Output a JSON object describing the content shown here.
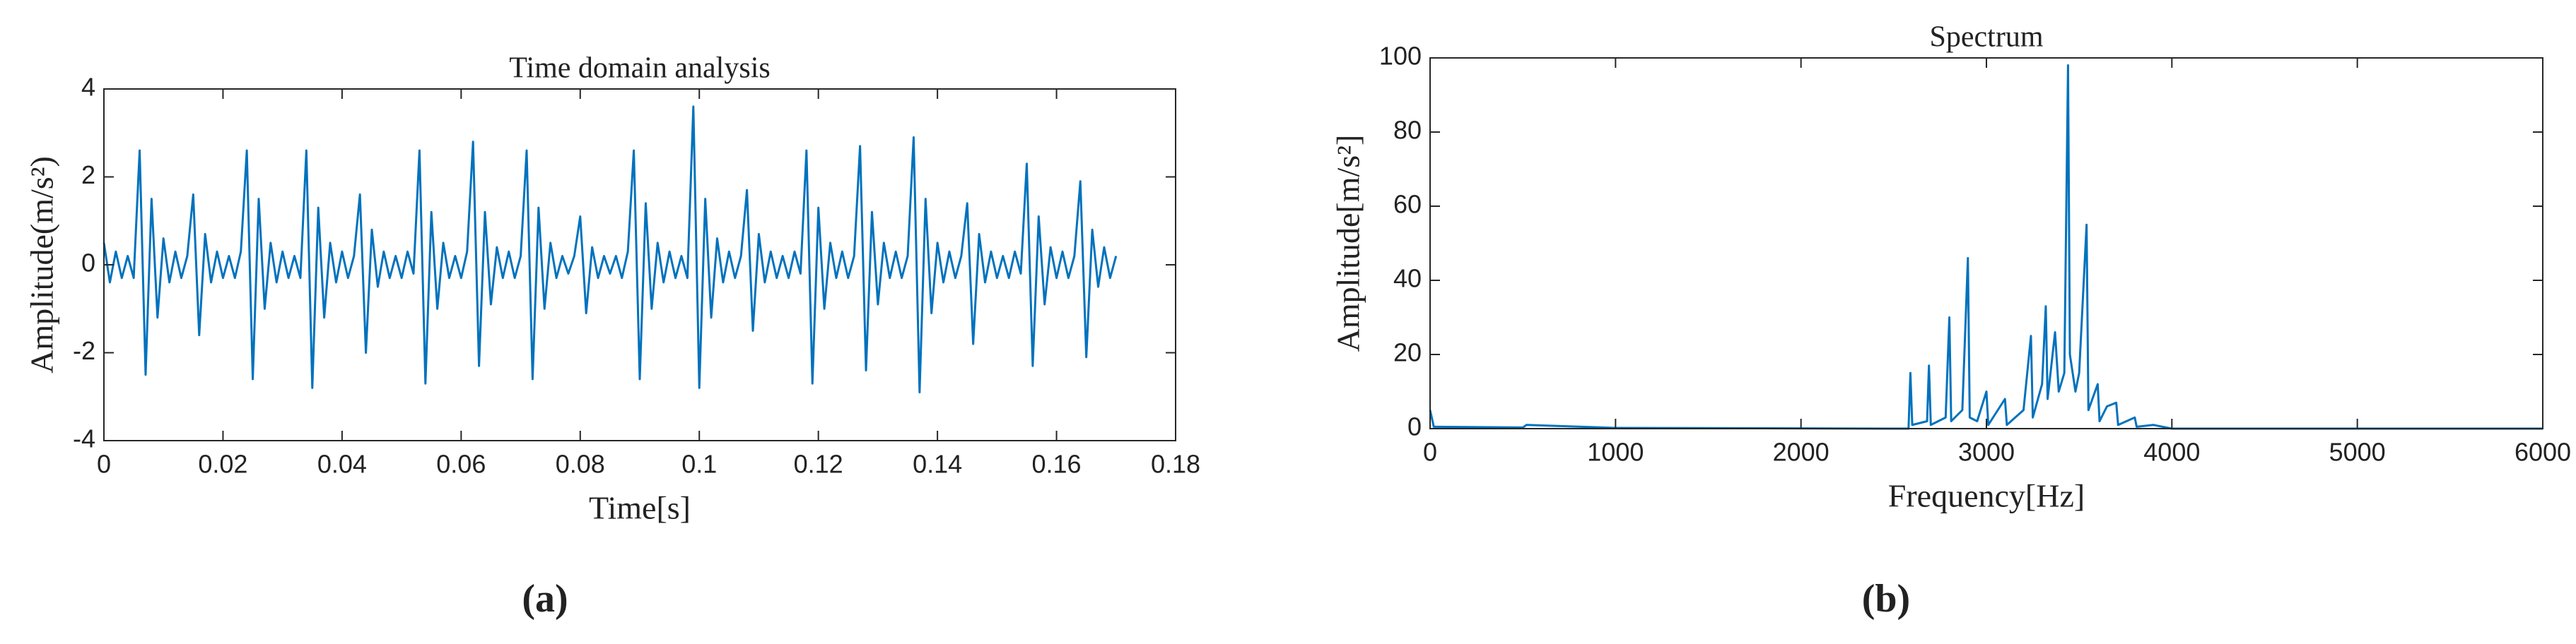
{
  "chart_data": [
    {
      "type": "line",
      "title": "Time domain analysis",
      "x_label": "Time[s]",
      "y_label": "Amplitude(m/s²)",
      "subplot_label": "(a)",
      "color": "#0072BD",
      "xlim": [
        0,
        0.18
      ],
      "xticks": [
        0,
        0.02,
        0.04,
        0.06,
        0.08,
        0.1,
        0.12,
        0.14,
        0.16,
        0.18
      ],
      "ylim": [
        -4,
        4
      ],
      "yticks": [
        -4,
        -2,
        0,
        2,
        4
      ],
      "x": [
        0,
        0.001,
        0.002,
        0.003,
        0.004,
        0.005,
        0.006,
        0.007,
        0.008,
        0.009,
        0.01,
        0.011,
        0.012,
        0.013,
        0.014,
        0.015,
        0.016,
        0.017,
        0.018,
        0.019,
        0.02,
        0.021,
        0.022,
        0.023,
        0.024,
        0.025,
        0.026,
        0.027,
        0.028,
        0.029,
        0.03,
        0.031,
        0.032,
        0.033,
        0.034,
        0.035,
        0.036,
        0.037,
        0.038,
        0.039,
        0.04,
        0.041,
        0.042,
        0.043,
        0.044,
        0.045,
        0.046,
        0.047,
        0.048,
        0.049,
        0.05,
        0.051,
        0.052,
        0.053,
        0.054,
        0.055,
        0.056,
        0.057,
        0.058,
        0.059,
        0.06,
        0.061,
        0.062,
        0.063,
        0.064,
        0.065,
        0.066,
        0.067,
        0.068,
        0.069,
        0.07,
        0.071,
        0.072,
        0.073,
        0.074,
        0.075,
        0.076,
        0.077,
        0.078,
        0.079,
        0.08,
        0.081,
        0.082,
        0.083,
        0.084,
        0.085,
        0.086,
        0.087,
        0.088,
        0.089,
        0.09,
        0.091,
        0.092,
        0.093,
        0.094,
        0.095,
        0.096,
        0.097,
        0.098,
        0.099,
        0.1,
        0.101,
        0.102,
        0.103,
        0.104,
        0.105,
        0.106,
        0.107,
        0.108,
        0.109,
        0.11,
        0.111,
        0.112,
        0.113,
        0.114,
        0.115,
        0.116,
        0.117,
        0.118,
        0.119,
        0.12,
        0.121,
        0.122,
        0.123,
        0.124,
        0.125,
        0.126,
        0.127,
        0.128,
        0.129,
        0.13,
        0.131,
        0.132,
        0.133,
        0.134,
        0.135,
        0.136,
        0.137,
        0.138,
        0.139,
        0.14,
        0.141,
        0.142,
        0.143,
        0.144,
        0.145,
        0.146,
        0.147,
        0.148,
        0.149,
        0.15,
        0.151,
        0.152,
        0.153,
        0.154,
        0.155,
        0.156,
        0.157,
        0.158,
        0.159,
        0.16,
        0.161,
        0.162,
        0.163,
        0.164,
        0.165,
        0.166,
        0.167,
        0.168,
        0.169,
        0.17
      ],
      "values": [
        0.5,
        -0.4,
        0.3,
        -0.3,
        0.2,
        -0.3,
        2.6,
        -2.5,
        1.5,
        -1.2,
        0.6,
        -0.4,
        0.3,
        -0.3,
        0.2,
        1.6,
        -1.6,
        0.7,
        -0.4,
        0.3,
        -0.3,
        0.2,
        -0.3,
        0.3,
        2.6,
        -2.6,
        1.5,
        -1.0,
        0.5,
        -0.4,
        0.3,
        -0.3,
        0.2,
        -0.3,
        2.6,
        -2.8,
        1.3,
        -1.2,
        0.5,
        -0.4,
        0.3,
        -0.3,
        0.2,
        1.6,
        -2.0,
        0.8,
        -0.5,
        0.3,
        -0.3,
        0.2,
        -0.3,
        0.3,
        -0.2,
        2.6,
        -2.7,
        1.2,
        -1.0,
        0.5,
        -0.3,
        0.2,
        -0.3,
        0.3,
        2.8,
        -2.3,
        1.2,
        -0.9,
        0.4,
        -0.3,
        0.3,
        -0.3,
        0.2,
        2.6,
        -2.6,
        1.3,
        -1.0,
        0.5,
        -0.3,
        0.2,
        -0.2,
        0.2,
        1.1,
        -1.1,
        0.4,
        -0.3,
        0.2,
        -0.2,
        0.2,
        -0.3,
        0.3,
        2.6,
        -2.6,
        1.4,
        -1.0,
        0.5,
        -0.4,
        0.3,
        -0.3,
        0.2,
        -0.3,
        3.6,
        -2.8,
        1.5,
        -1.2,
        0.6,
        -0.4,
        0.3,
        -0.3,
        0.2,
        1.7,
        -1.5,
        0.7,
        -0.4,
        0.3,
        -0.3,
        0.2,
        -0.3,
        0.3,
        -0.2,
        2.6,
        -2.7,
        1.3,
        -1.0,
        0.5,
        -0.3,
        0.3,
        -0.3,
        0.2,
        2.7,
        -2.4,
        1.2,
        -0.9,
        0.5,
        -0.3,
        0.3,
        -0.3,
        0.2,
        2.9,
        -2.9,
        1.5,
        -1.1,
        0.5,
        -0.4,
        0.3,
        -0.3,
        0.2,
        1.4,
        -1.8,
        0.7,
        -0.4,
        0.3,
        -0.3,
        0.2,
        -0.3,
        0.3,
        -0.2,
        2.3,
        -2.3,
        1.1,
        -0.9,
        0.4,
        -0.3,
        0.3,
        -0.3,
        0.2,
        1.9,
        -2.1,
        0.8,
        -0.5,
        0.4,
        -0.3,
        0.2
      ]
    },
    {
      "type": "line",
      "title": "Spectrum",
      "x_label": "Frequency[Hz]",
      "y_label": "Amplitude[m/s²]",
      "subplot_label": "(b)",
      "color": "#0072BD",
      "xlim": [
        0,
        6000
      ],
      "xticks": [
        0,
        1000,
        2000,
        3000,
        4000,
        5000,
        6000
      ],
      "ylim": [
        0,
        100
      ],
      "yticks": [
        0,
        20,
        40,
        60,
        80,
        100
      ],
      "x": [
        0,
        20,
        500,
        520,
        1000,
        2500,
        2580,
        2590,
        2600,
        2680,
        2690,
        2700,
        2780,
        2800,
        2810,
        2870,
        2900,
        2910,
        2950,
        3000,
        3010,
        3100,
        3110,
        3200,
        3240,
        3250,
        3300,
        3320,
        3330,
        3370,
        3390,
        3420,
        3440,
        3450,
        3480,
        3500,
        3540,
        3550,
        3600,
        3610,
        3650,
        3700,
        3710,
        3800,
        3810,
        3900,
        4000,
        5000,
        6000
      ],
      "values": [
        5,
        0.5,
        0.3,
        1,
        0.2,
        0,
        0,
        15,
        1,
        2,
        17,
        1,
        3,
        30,
        2,
        5,
        46,
        3,
        2,
        10,
        1,
        8,
        1,
        5,
        25,
        3,
        12,
        33,
        8,
        26,
        10,
        15,
        98,
        20,
        10,
        15,
        55,
        5,
        12,
        2,
        6,
        7,
        1,
        3,
        0.5,
        1,
        0,
        0,
        0
      ]
    }
  ]
}
